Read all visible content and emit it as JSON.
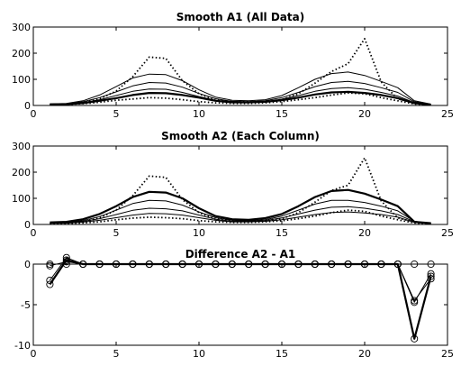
{
  "chart_data": [
    {
      "type": "line",
      "title": "Smooth A1 (All Data)",
      "xlim": [
        0,
        25
      ],
      "ylim": [
        0,
        300
      ],
      "xticks": [
        "0",
        "5",
        "10",
        "15",
        "20",
        "25"
      ],
      "yticks": [
        "0",
        "100",
        "200",
        "300"
      ],
      "grid": false,
      "series": [
        {
          "style": "dotted",
          "x": [
            1,
            2,
            3,
            4,
            5,
            6,
            7,
            8,
            9,
            10,
            11,
            12,
            13,
            14,
            15,
            16,
            17,
            18,
            19,
            20,
            21,
            22,
            23,
            24
          ],
          "values": [
            4,
            5,
            10,
            25,
            55,
            110,
            185,
            180,
            95,
            45,
            20,
            14,
            14,
            16,
            22,
            45,
            85,
            130,
            160,
            255,
            90,
            25,
            10,
            4
          ]
        },
        {
          "style": "thin",
          "x": [
            1,
            2,
            3,
            4,
            5,
            6,
            7,
            8,
            9,
            10,
            11,
            12,
            13,
            14,
            15,
            16,
            17,
            18,
            19,
            20,
            21,
            22,
            23,
            24
          ],
          "values": [
            6,
            8,
            18,
            40,
            72,
            105,
            120,
            118,
            95,
            60,
            32,
            20,
            18,
            22,
            38,
            68,
            100,
            122,
            128,
            115,
            92,
            68,
            18,
            5
          ]
        },
        {
          "style": "thin",
          "x": [
            1,
            2,
            3,
            4,
            5,
            6,
            7,
            8,
            9,
            10,
            11,
            12,
            13,
            14,
            15,
            16,
            17,
            18,
            19,
            20,
            21,
            22,
            23,
            24
          ],
          "values": [
            5,
            7,
            14,
            30,
            52,
            75,
            88,
            86,
            70,
            46,
            26,
            16,
            14,
            18,
            30,
            50,
            72,
            88,
            92,
            84,
            68,
            50,
            14,
            4
          ]
        },
        {
          "style": "thin",
          "x": [
            1,
            2,
            3,
            4,
            5,
            6,
            7,
            8,
            9,
            10,
            11,
            12,
            13,
            14,
            15,
            16,
            17,
            18,
            19,
            20,
            21,
            22,
            23,
            24
          ],
          "values": [
            4,
            6,
            11,
            22,
            38,
            54,
            63,
            62,
            50,
            34,
            20,
            13,
            12,
            15,
            24,
            38,
            54,
            65,
            68,
            62,
            50,
            36,
            11,
            3
          ]
        },
        {
          "style": "thick",
          "x": [
            1,
            2,
            3,
            4,
            5,
            6,
            7,
            8,
            9,
            10,
            11,
            12,
            13,
            14,
            15,
            16,
            17,
            18,
            19,
            20,
            21,
            22,
            23,
            24
          ],
          "values": [
            4,
            5,
            9,
            18,
            28,
            40,
            48,
            47,
            40,
            30,
            18,
            12,
            12,
            14,
            20,
            30,
            42,
            50,
            52,
            48,
            40,
            28,
            9,
            3
          ]
        },
        {
          "style": "dotted",
          "x": [
            1,
            2,
            3,
            4,
            5,
            6,
            7,
            8,
            9,
            10,
            11,
            12,
            13,
            14,
            15,
            16,
            17,
            18,
            19,
            20,
            21,
            22,
            23,
            24
          ],
          "values": [
            3,
            4,
            7,
            12,
            20,
            25,
            30,
            28,
            22,
            15,
            10,
            8,
            8,
            10,
            15,
            22,
            30,
            40,
            48,
            45,
            30,
            18,
            6,
            2
          ]
        }
      ]
    },
    {
      "type": "line",
      "title": "Smooth A2 (Each Column)",
      "xlim": [
        0,
        25
      ],
      "ylim": [
        0,
        300
      ],
      "xticks": [
        "0",
        "5",
        "10",
        "15",
        "20",
        "25"
      ],
      "yticks": [
        "0",
        "100",
        "200",
        "300"
      ],
      "grid": false,
      "series": [
        {
          "style": "dotted",
          "x": [
            1,
            2,
            3,
            4,
            5,
            6,
            7,
            8,
            9,
            10,
            11,
            12,
            13,
            14,
            15,
            16,
            17,
            18,
            19,
            20,
            21,
            22,
            23,
            24
          ],
          "values": [
            4,
            5,
            10,
            25,
            55,
            110,
            185,
            180,
            95,
            45,
            20,
            14,
            14,
            16,
            22,
            45,
            85,
            130,
            150,
            255,
            90,
            25,
            10,
            4
          ]
        },
        {
          "style": "thick",
          "x": [
            1,
            2,
            3,
            4,
            5,
            6,
            7,
            8,
            9,
            10,
            11,
            12,
            13,
            14,
            15,
            16,
            17,
            18,
            19,
            20,
            21,
            22,
            23,
            24
          ],
          "values": [
            8,
            10,
            20,
            40,
            70,
            105,
            125,
            122,
            100,
            62,
            32,
            20,
            18,
            24,
            40,
            70,
            105,
            128,
            132,
            118,
            95,
            70,
            10,
            5
          ]
        },
        {
          "style": "thin",
          "x": [
            1,
            2,
            3,
            4,
            5,
            6,
            7,
            8,
            9,
            10,
            11,
            12,
            13,
            14,
            15,
            16,
            17,
            18,
            19,
            20,
            21,
            22,
            23,
            24
          ],
          "values": [
            6,
            8,
            15,
            30,
            55,
            80,
            92,
            90,
            74,
            48,
            26,
            16,
            14,
            18,
            32,
            55,
            78,
            92,
            92,
            84,
            70,
            52,
            12,
            4
          ]
        },
        {
          "style": "thin",
          "x": [
            1,
            2,
            3,
            4,
            5,
            6,
            7,
            8,
            9,
            10,
            11,
            12,
            13,
            14,
            15,
            16,
            17,
            18,
            19,
            20,
            21,
            22,
            23,
            24
          ],
          "values": [
            5,
            7,
            12,
            22,
            38,
            54,
            62,
            60,
            52,
            36,
            20,
            12,
            12,
            15,
            25,
            40,
            55,
            66,
            68,
            62,
            52,
            38,
            10,
            4
          ]
        },
        {
          "style": "thin",
          "x": [
            1,
            2,
            3,
            4,
            5,
            6,
            7,
            8,
            9,
            10,
            11,
            12,
            13,
            14,
            15,
            16,
            17,
            18,
            19,
            20,
            21,
            22,
            23,
            24
          ],
          "values": [
            4,
            5,
            9,
            16,
            26,
            36,
            42,
            41,
            36,
            26,
            16,
            10,
            10,
            12,
            18,
            28,
            38,
            46,
            48,
            44,
            38,
            28,
            8,
            3
          ]
        },
        {
          "style": "dotted",
          "x": [
            1,
            2,
            3,
            4,
            5,
            6,
            7,
            8,
            9,
            10,
            11,
            12,
            13,
            14,
            15,
            16,
            17,
            18,
            19,
            20,
            21,
            22,
            23,
            24
          ],
          "values": [
            3,
            4,
            6,
            10,
            18,
            24,
            28,
            26,
            22,
            15,
            10,
            8,
            8,
            10,
            14,
            22,
            32,
            45,
            55,
            50,
            32,
            18,
            6,
            2
          ]
        }
      ]
    },
    {
      "type": "line",
      "title": "Difference A2 - A1",
      "xlim": [
        0,
        25
      ],
      "ylim": [
        -10,
        0
      ],
      "xticks": [
        "0",
        "5",
        "10",
        "15",
        "20",
        "25"
      ],
      "yticks": [
        "-10",
        "-5",
        "0"
      ],
      "grid": false,
      "markers": "circle",
      "series": [
        {
          "style": "thick",
          "x": [
            1,
            2,
            3,
            4,
            5,
            6,
            7,
            8,
            9,
            10,
            11,
            12,
            13,
            14,
            15,
            16,
            17,
            18,
            19,
            20,
            21,
            22,
            23,
            24
          ],
          "values": [
            -2.5,
            0.5,
            0,
            0,
            0,
            0,
            0,
            0,
            0,
            0,
            0,
            0,
            0,
            0,
            0,
            0,
            0,
            0,
            0,
            0,
            0,
            0,
            -9.2,
            -1.5
          ]
        },
        {
          "style": "thin",
          "x": [
            1,
            2,
            3,
            4,
            5,
            6,
            7,
            8,
            9,
            10,
            11,
            12,
            13,
            14,
            15,
            16,
            17,
            18,
            19,
            20,
            21,
            22,
            23,
            24
          ],
          "values": [
            -2.0,
            0.8,
            0,
            0,
            0,
            0,
            0,
            0,
            0,
            0,
            0,
            0,
            0,
            0,
            0,
            0,
            0,
            0,
            0,
            0,
            0,
            0,
            -4.7,
            -1.2
          ]
        },
        {
          "style": "thin",
          "x": [
            1,
            2,
            3,
            4,
            5,
            6,
            7,
            8,
            9,
            10,
            11,
            12,
            13,
            14,
            15,
            16,
            17,
            18,
            19,
            20,
            21,
            22,
            23,
            24
          ],
          "values": [
            -0.2,
            0.3,
            0,
            0,
            0,
            0,
            0,
            0,
            0,
            0,
            0,
            0,
            0,
            0,
            0,
            0,
            0,
            0,
            0,
            0,
            0,
            0,
            -4.5,
            -1.8
          ]
        },
        {
          "style": "thin",
          "x": [
            1,
            2,
            3,
            4,
            5,
            6,
            7,
            8,
            9,
            10,
            11,
            12,
            13,
            14,
            15,
            16,
            17,
            18,
            19,
            20,
            21,
            22,
            23,
            24
          ],
          "values": [
            0,
            0,
            0,
            0,
            0,
            0,
            0,
            0,
            0,
            0,
            0,
            0,
            0,
            0,
            0,
            0,
            0,
            0,
            0,
            0,
            0,
            0,
            0,
            0
          ]
        }
      ]
    }
  ]
}
